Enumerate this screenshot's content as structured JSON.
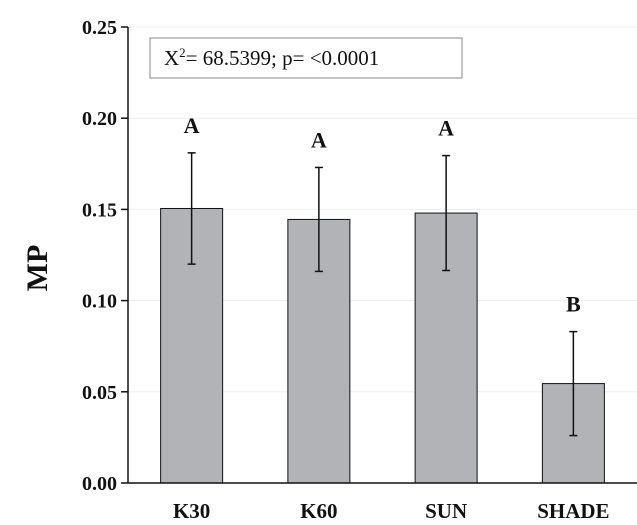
{
  "chart_data": {
    "type": "bar",
    "ylabel": "MP",
    "xlabel": "",
    "categories": [
      "K30",
      "K60",
      "SUN",
      "SHADE"
    ],
    "values": [
      0.1505,
      0.1445,
      0.148,
      0.0545
    ],
    "error": [
      0.0305,
      0.0285,
      0.0315,
      0.0285
    ],
    "significance": [
      "A",
      "A",
      "A",
      "B"
    ],
    "ylim": [
      0,
      0.25
    ],
    "yticks": [
      "0.00",
      "0.05",
      "0.10",
      "0.15",
      "0.20",
      "0.25"
    ],
    "grid": true,
    "bar_color": "#b2b3b6",
    "annotation": {
      "chi": "X",
      "sup": "2",
      "rest": "= 68.5399; p= <0.0001"
    }
  }
}
